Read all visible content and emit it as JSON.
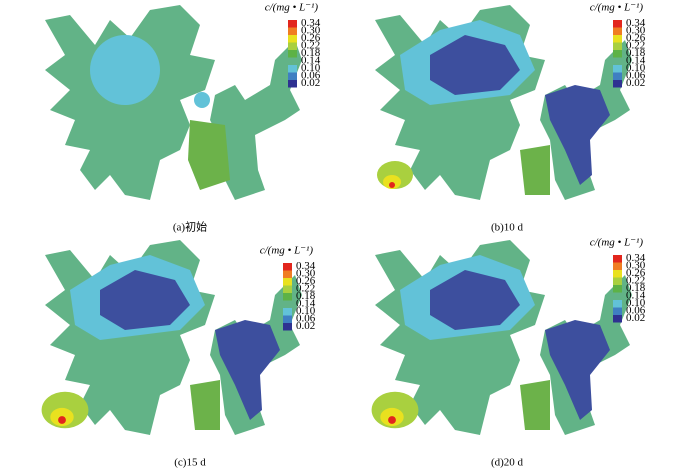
{
  "panels": [
    {
      "caption": "(a)初始",
      "colorbar": {
        "title": "c/(mg • L⁻¹)",
        "labels": [
          "0.34",
          "0.30",
          "0.26",
          "0.22",
          "0.18",
          "0.14",
          "0.10",
          "0.06",
          "0.02"
        ]
      }
    },
    {
      "caption": "(b)10 d",
      "colorbar": {
        "title": "c/(mg • L⁻¹)",
        "labels": [
          "0.34",
          "0.30",
          "0.26",
          "0.22",
          "0.18",
          "0.14",
          "0.10",
          "0.06",
          "0.02"
        ]
      }
    },
    {
      "caption": "(c)15 d",
      "colorbar": {
        "title": "c/(mg • L⁻¹)",
        "labels": [
          "0.34",
          "0.30",
          "0.26",
          "0.22",
          "0.18",
          "0.14",
          "0.10",
          "0.06",
          "0.02"
        ]
      }
    },
    {
      "caption": "(d)20 d",
      "colorbar": {
        "title": "c/(mg • L⁻¹)",
        "labels": [
          "0.34",
          "0.30",
          "0.26",
          "0.22",
          "0.18",
          "0.14",
          "0.10",
          "0.06",
          "0.02"
        ]
      }
    }
  ]
}
